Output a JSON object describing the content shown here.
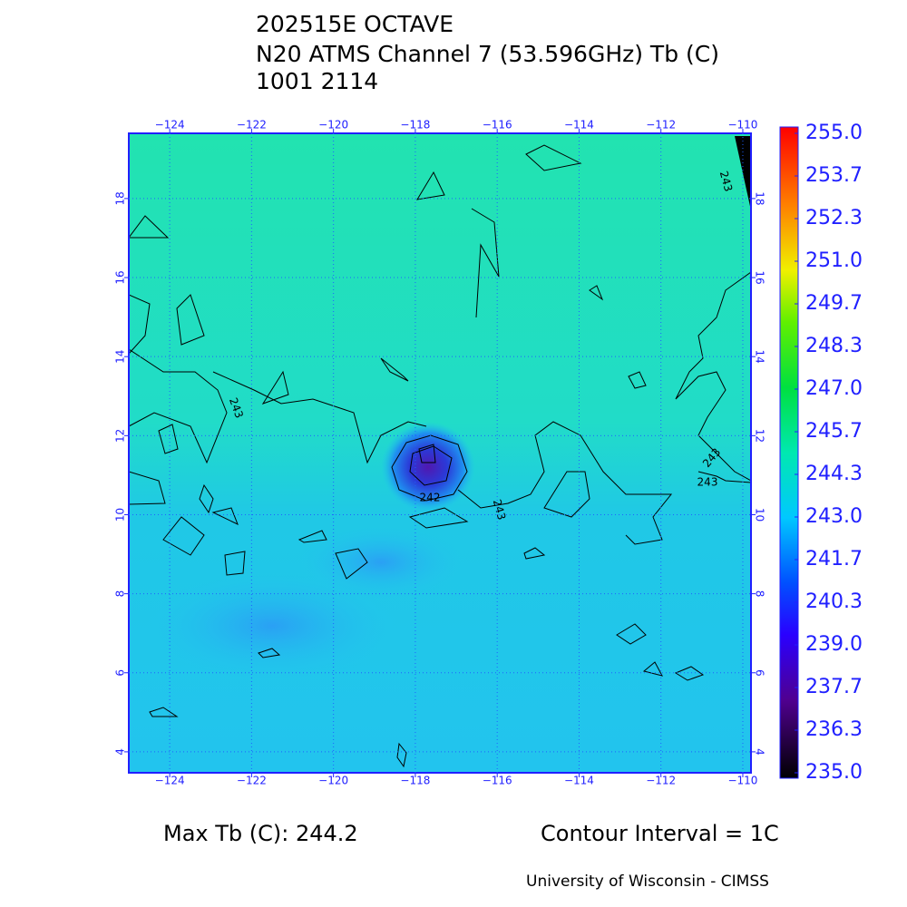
{
  "header": {
    "lines": [
      "202515E OCTAVE",
      "N20 ATMS Channel 7 (53.596GHz) Tb (C)",
      "1001 2114"
    ]
  },
  "map": {
    "xlim": [
      -125,
      -109.8
    ],
    "ylim": [
      3.47,
      19.65
    ],
    "xticks": [
      {
        "value": -124,
        "label": "−124"
      },
      {
        "value": -122,
        "label": "−122"
      },
      {
        "value": -120,
        "label": "−120"
      },
      {
        "value": -118,
        "label": "−118"
      },
      {
        "value": -116,
        "label": "−116"
      },
      {
        "value": -114,
        "label": "−114"
      },
      {
        "value": -112,
        "label": "−112"
      },
      {
        "value": -110,
        "label": "−110"
      }
    ],
    "yticks": [
      4,
      6,
      8,
      10,
      12,
      14,
      16,
      18
    ],
    "grid": true,
    "contour_labels": [
      "243",
      "243",
      "243",
      "243",
      "243",
      "242"
    ]
  },
  "colorbar": {
    "range": [
      235,
      255
    ],
    "ticks": [
      {
        "value": 255,
        "label": "255.0"
      },
      {
        "value": 253.667,
        "label": "253.7"
      },
      {
        "value": 252.333,
        "label": "252.3"
      },
      {
        "value": 251,
        "label": "251.0"
      },
      {
        "value": 249.667,
        "label": "249.7"
      },
      {
        "value": 248.333,
        "label": "248.3"
      },
      {
        "value": 247,
        "label": "247.0"
      },
      {
        "value": 245.667,
        "label": "245.7"
      },
      {
        "value": 244.333,
        "label": "244.3"
      },
      {
        "value": 243,
        "label": "243.0"
      },
      {
        "value": 241.667,
        "label": "241.7"
      },
      {
        "value": 240.333,
        "label": "240.3"
      },
      {
        "value": 239,
        "label": "239.0"
      },
      {
        "value": 237.667,
        "label": "237.7"
      },
      {
        "value": 236.333,
        "label": "236.3"
      },
      {
        "value": 235,
        "label": "235.0"
      }
    ]
  },
  "footer": {
    "max_tb": "Max Tb (C): 244.2",
    "contour_interval": "Contour Interval = 1C",
    "credit": "University of Wisconsin - CIMSS"
  }
}
